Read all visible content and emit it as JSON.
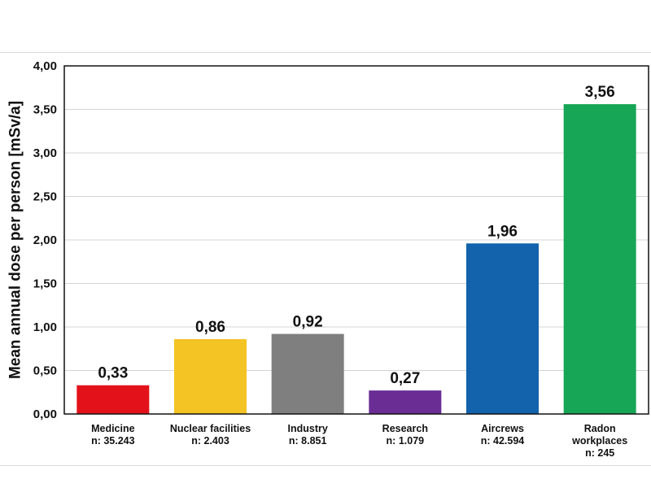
{
  "chart_data": {
    "type": "bar",
    "title": "",
    "xlabel": "",
    "ylabel": "Mean annual dose per person [mSv/a]",
    "ylim": [
      0,
      4
    ],
    "ystep": 0.5,
    "grid": true,
    "decimal_separator": ",",
    "categories": [
      {
        "name": "Medicine",
        "sub": [
          "n: 35.243"
        ]
      },
      {
        "name": "Nuclear facilities",
        "sub": [
          "n: 2.403"
        ]
      },
      {
        "name": "Industry",
        "sub": [
          "n: 8.851"
        ]
      },
      {
        "name": "Research",
        "sub": [
          "n: 1.079"
        ]
      },
      {
        "name": "Aircrews",
        "sub": [
          "n: 42.594"
        ]
      },
      {
        "name": "Radon",
        "sub": [
          "workplaces",
          "n: 245"
        ]
      }
    ],
    "values": [
      0.33,
      0.86,
      0.92,
      0.27,
      1.96,
      3.56
    ],
    "value_labels": [
      "0,33",
      "0,86",
      "0,92",
      "0,27",
      "1,96",
      "3,56"
    ],
    "tick_labels": [
      "0,00",
      "0,50",
      "1,00",
      "1,50",
      "2,00",
      "2,50",
      "3,00",
      "3,50",
      "4,00"
    ],
    "colors": [
      "#e3121a",
      "#f4c324",
      "#7f7f7f",
      "#6a2d94",
      "#1262ac",
      "#17a656"
    ]
  }
}
